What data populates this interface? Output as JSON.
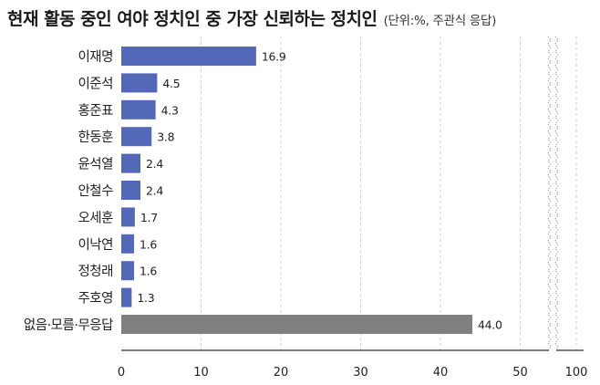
{
  "chart_data": {
    "type": "bar",
    "orientation": "horizontal",
    "title": "현재 활동 중인 여야 정치인 중 가장 신뢰하는 정치인",
    "subtitle": "(단위:%, 주관식 응답)",
    "categories": [
      "이재명",
      "이준석",
      "홍준표",
      "한동훈",
      "윤석열",
      "안철수",
      "오세훈",
      "이낙연",
      "정청래",
      "주호영",
      "없음·모름·무응답"
    ],
    "values": [
      16.9,
      4.5,
      4.3,
      3.8,
      2.4,
      2.4,
      1.7,
      1.6,
      1.6,
      1.3,
      44.0
    ],
    "value_labels": [
      "16.9",
      "4.5",
      "4.3",
      "3.8",
      "2.4",
      "2.4",
      "1.7",
      "1.6",
      "1.6",
      "1.3",
      "44.0"
    ],
    "x_ticks": [
      "0",
      "10",
      "20",
      "30",
      "40",
      "50",
      "100"
    ],
    "x_tick_values": [
      0,
      10,
      20,
      30,
      40,
      50,
      100
    ],
    "axis_break": "between 50 and 100",
    "grid": "vertical dashed",
    "colors": {
      "bar": "#5468b8",
      "bar_highlight": "#808080",
      "grid": "#cfcfcf",
      "axis": "#333333"
    }
  }
}
